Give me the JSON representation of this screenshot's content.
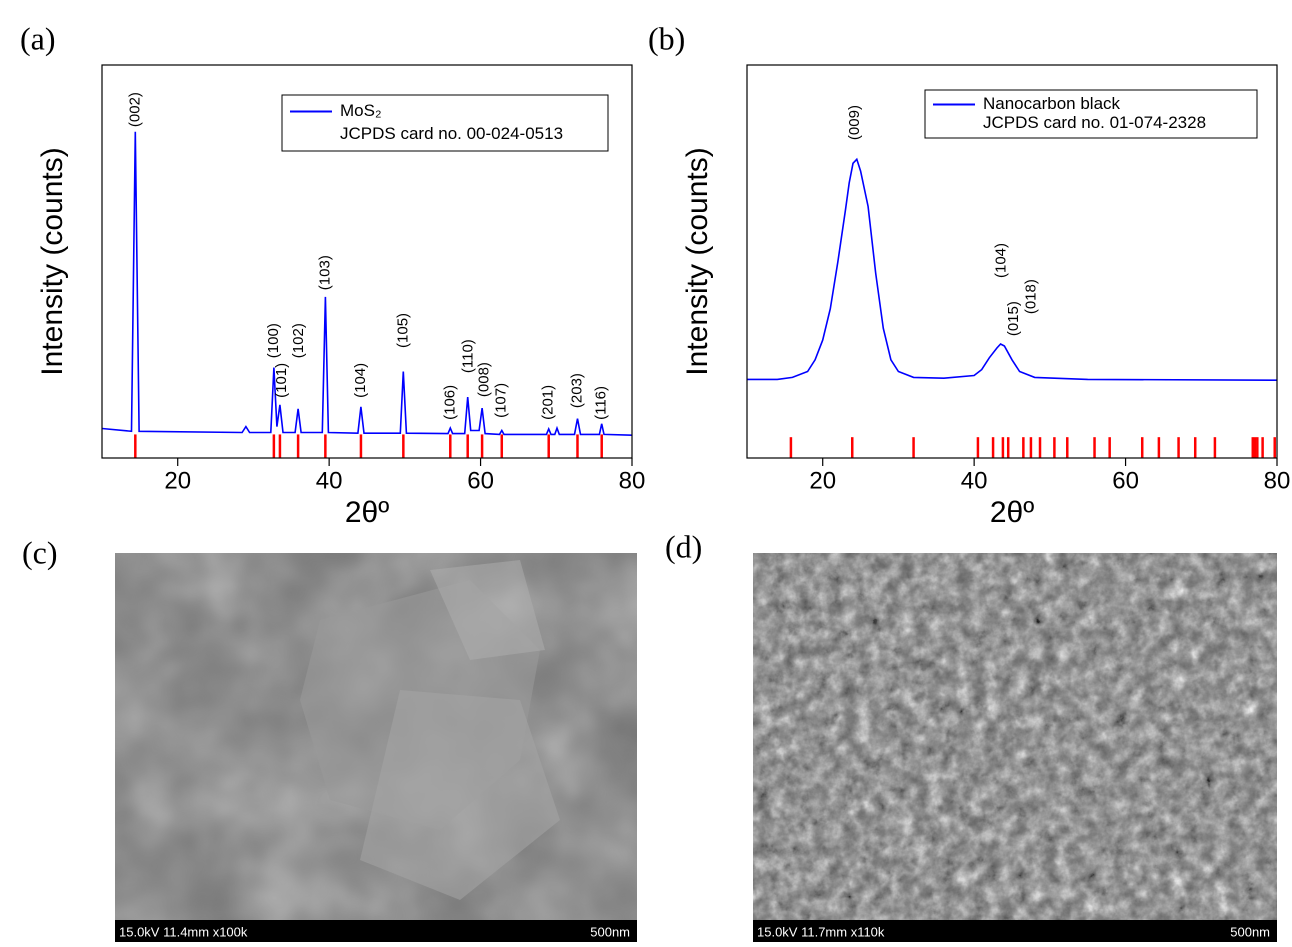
{
  "chart_data": [
    {
      "type": "line",
      "panel_label": "(a)",
      "x_label": "2θº",
      "y_label": "Intensity (counts)",
      "xlim": [
        10,
        80
      ],
      "ylim": [
        0,
        100
      ],
      "xticks": [
        20,
        40,
        60,
        80
      ],
      "legend": "upper right",
      "series": [
        {
          "name": "MoS₂",
          "color": "#0000ff",
          "style": "line",
          "x": [
            10,
            13.9,
            14.4,
            14.9,
            28.5,
            29,
            29.5,
            32.3,
            32.7,
            33.1,
            33.5,
            33.9,
            35.5,
            35.9,
            36.3,
            39.1,
            39.5,
            39.9,
            43.8,
            44.2,
            44.6,
            49.4,
            49.8,
            50.2,
            55.7,
            56,
            56.3,
            57.9,
            58.3,
            58.7,
            59.8,
            60.2,
            60.6,
            62.5,
            62.8,
            63.1,
            68.7,
            69,
            69.3,
            69.8,
            70.1,
            70.4,
            72.4,
            72.8,
            73.2,
            75.7,
            76,
            76.3,
            80
          ],
          "values": [
            7.5,
            6.8,
            83,
            6.8,
            6.5,
            8,
            6.5,
            6.5,
            23,
            8,
            13.5,
            6.5,
            6.5,
            12.5,
            6.5,
            6.5,
            41,
            6.5,
            6.3,
            13,
            6.3,
            6.3,
            22,
            6.3,
            6.2,
            7.6,
            6.2,
            6.2,
            15.5,
            7,
            7,
            12.7,
            6.2,
            6,
            7,
            6,
            6,
            7.4,
            6,
            6,
            7.6,
            6,
            6,
            10,
            6,
            6,
            8.7,
            6,
            5.8
          ]
        },
        {
          "name": "JCPDS card no. 00-024-0513",
          "color": "#ff0000",
          "style": "stick",
          "x": [
            14.4,
            32.7,
            33.5,
            35.9,
            39.5,
            44.2,
            49.8,
            56,
            58.3,
            60.2,
            62.8,
            69,
            72.8,
            76
          ],
          "values": [
            6,
            6,
            6,
            6,
            6,
            6,
            6,
            6,
            6,
            6,
            6,
            6,
            6,
            6
          ]
        }
      ],
      "annotations": [
        {
          "text": "(002)",
          "x": 14.4,
          "y": 84.2
        },
        {
          "text": "(100)",
          "x": 32.7,
          "y": 25.4
        },
        {
          "text": "(101)",
          "x": 33.8,
          "y": 15.3
        },
        {
          "text": "(102)",
          "x": 36,
          "y": 25.4
        },
        {
          "text": "(103)",
          "x": 39.5,
          "y": 42.7
        },
        {
          "text": "(104)",
          "x": 44.2,
          "y": 15.3
        },
        {
          "text": "(105)",
          "x": 49.8,
          "y": 28
        },
        {
          "text": "(106)",
          "x": 56,
          "y": 9.7
        },
        {
          "text": "(110)",
          "x": 58.4,
          "y": 21.6
        },
        {
          "text": "(008)",
          "x": 60.5,
          "y": 15.5
        },
        {
          "text": "(107)",
          "x": 62.8,
          "y": 10.2
        },
        {
          "text": "(201)",
          "x": 69,
          "y": 9.7
        },
        {
          "text": "(203)",
          "x": 72.8,
          "y": 12.7
        },
        {
          "text": "(116)",
          "x": 76,
          "y": 9.7
        }
      ]
    },
    {
      "type": "line",
      "panel_label": "(b)",
      "x_label": "2θº",
      "y_label": "Intensity (counts)",
      "xlim": [
        10,
        80
      ],
      "ylim": [
        0,
        100
      ],
      "xticks": [
        20,
        40,
        60,
        80
      ],
      "legend": "upper right",
      "series": [
        {
          "name": "Nanocarbon black",
          "color": "#0000ff",
          "style": "line",
          "x": [
            10,
            14,
            16,
            18,
            19,
            20,
            21,
            22,
            23,
            23.5,
            24,
            24.5,
            25,
            26,
            27,
            28,
            29,
            30,
            32,
            36,
            40,
            41,
            42,
            43,
            43.5,
            44,
            45,
            46,
            48,
            55,
            80
          ],
          "values": [
            20,
            20,
            20.5,
            22,
            25,
            30,
            38,
            50,
            63,
            70,
            75,
            76,
            73,
            64,
            47,
            33,
            25,
            22,
            20.5,
            20.3,
            21,
            22.5,
            25.5,
            28,
            29,
            28.5,
            25,
            22,
            20.5,
            20,
            19.8
          ]
        },
        {
          "name": "JCPDS card no. 01-074-2328",
          "color": "#ff0000",
          "style": "stick",
          "x": [
            15.8,
            23.9,
            32,
            40.5,
            42.5,
            43.8,
            44.5,
            46.5,
            47.5,
            48.7,
            50.6,
            52.3,
            55.9,
            57.9,
            62.2,
            64.4,
            67,
            69.2,
            71.8,
            76.8,
            77.1,
            77.4,
            78.1,
            79.7
          ],
          "values": [
            5.3,
            5.3,
            5.3,
            5.3,
            5.3,
            5.3,
            5.3,
            5.3,
            5.3,
            5.3,
            5.3,
            5.3,
            5.3,
            5.3,
            5.3,
            5.3,
            5.3,
            5.3,
            5.3,
            5.3,
            5.3,
            5.3,
            5.3,
            5.3
          ]
        }
      ],
      "annotations": [
        {
          "text": "(009)",
          "x": 24.3,
          "y": 80.9
        },
        {
          "text": "(104)",
          "x": 43.6,
          "y": 45.8
        },
        {
          "text": "(015)",
          "x": 45.3,
          "y": 31
        },
        {
          "text": "(018)",
          "x": 47.6,
          "y": 36.6
        }
      ]
    }
  ],
  "images": [
    {
      "label": "(c)",
      "caption": "15.0kV 11.4mm x100k",
      "scale_bar": "500nm"
    },
    {
      "label": "(d)",
      "caption": "15.0kV 11.7mm x110k",
      "scale_bar": "500nm"
    }
  ]
}
